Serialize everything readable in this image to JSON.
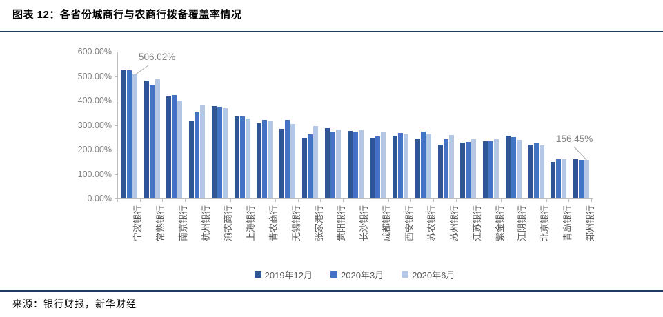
{
  "page": {
    "title": "图表 12：各省份城商行与农商行拨备覆盖率情况",
    "source": "来源：银行财报，新华财经"
  },
  "colors": {
    "divider": "#1F3864",
    "axis": "#BFBFBF",
    "axis_text": "#7F7F7F",
    "category_text": "#595959",
    "annotation_line": "#A6A6A6"
  },
  "chart_data": {
    "type": "bar",
    "title": "各省份城商行与农商行拨备覆盖率情况",
    "categories": [
      "宁波银行",
      "常熟银行",
      "南京银行",
      "杭州银行",
      "渝农商行",
      "上海银行",
      "青农商行",
      "无锡银行",
      "张家港行",
      "贵阳银行",
      "长沙银行",
      "成都银行",
      "西安银行",
      "苏农银行",
      "苏州银行",
      "江苏银行",
      "紫金银行",
      "江阴银行",
      "北京银行",
      "青岛银行",
      "郑州银行"
    ],
    "series": [
      {
        "name": "2019年12月",
        "color": "#2F5597",
        "values": [
          524,
          481,
          417,
          316,
          378,
          334,
          306,
          284,
          247,
          288,
          275,
          247,
          257,
          246,
          219,
          228,
          233,
          255,
          221,
          149,
          160
        ]
      },
      {
        "name": "2020年3月",
        "color": "#4472C4",
        "values": [
          524,
          462,
          422,
          352,
          375,
          336,
          322,
          322,
          261,
          273,
          273,
          254,
          268,
          273,
          242,
          232,
          234,
          251,
          224,
          161,
          158
        ]
      },
      {
        "name": "2020年6月",
        "color": "#B4C7E7",
        "values": [
          506.02,
          488,
          400,
          384,
          368,
          328,
          316,
          304,
          295,
          281,
          280,
          271,
          263,
          262,
          260,
          243,
          241,
          239,
          217,
          161,
          156.45
        ]
      }
    ],
    "xlabel": "",
    "ylabel": "",
    "ylim": [
      0,
      600
    ],
    "ytick_step": 100,
    "ytick_labels": [
      "0.00%",
      "100.00%",
      "200.00%",
      "300.00%",
      "400.00%",
      "500.00%",
      "600.00%"
    ],
    "grid": false,
    "legend_position": "bottom",
    "annotations": [
      {
        "text": "506.02%",
        "series": "2020年6月",
        "category": "宁波银行"
      },
      {
        "text": "156.45%",
        "series": "2020年6月",
        "category": "郑州银行"
      }
    ]
  }
}
